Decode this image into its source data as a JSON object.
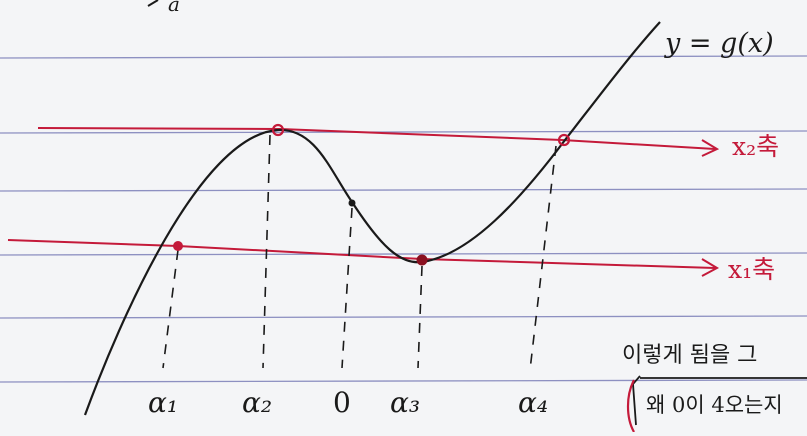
{
  "note": {
    "curve_label": "y = g(x)",
    "upper_line_label": "x₂축",
    "lower_line_label": "x₁축",
    "x_labels": [
      "α₁",
      "α₂",
      "0",
      "α₃",
      "α₄"
    ],
    "side_text": "이렇게 됨을 그",
    "boxed_text": "왜 0이 4오는지",
    "top_fragment": "a",
    "colors": {
      "paper": "#f4f5f7",
      "rule": "#6b6fb0",
      "ink": "#1a1a1a",
      "red_ink": "#c41a3a"
    }
  }
}
